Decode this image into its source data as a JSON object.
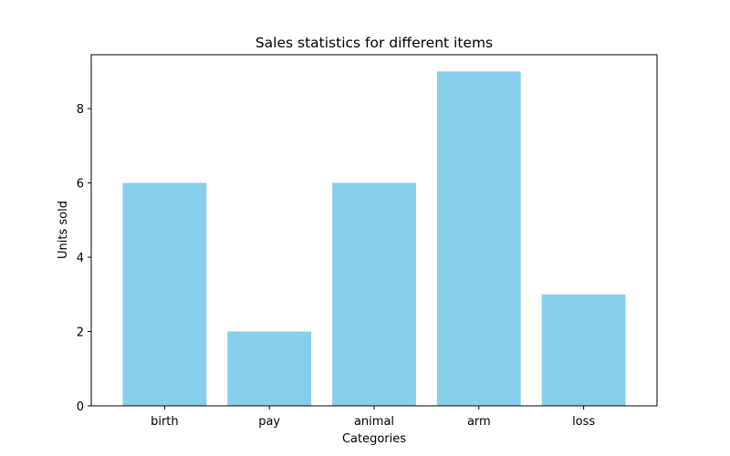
{
  "chart_data": {
    "type": "bar",
    "title": "Sales statistics for different items",
    "xlabel": "Categories",
    "ylabel": "Units sold",
    "categories": [
      "birth",
      "pay",
      "animal",
      "arm",
      "loss"
    ],
    "values": [
      6,
      2,
      6,
      9,
      3
    ],
    "ylim": [
      0,
      9.45
    ],
    "yticks": [
      0,
      2,
      4,
      6,
      8
    ],
    "grid": false,
    "bar_color": "#87ceeb"
  }
}
